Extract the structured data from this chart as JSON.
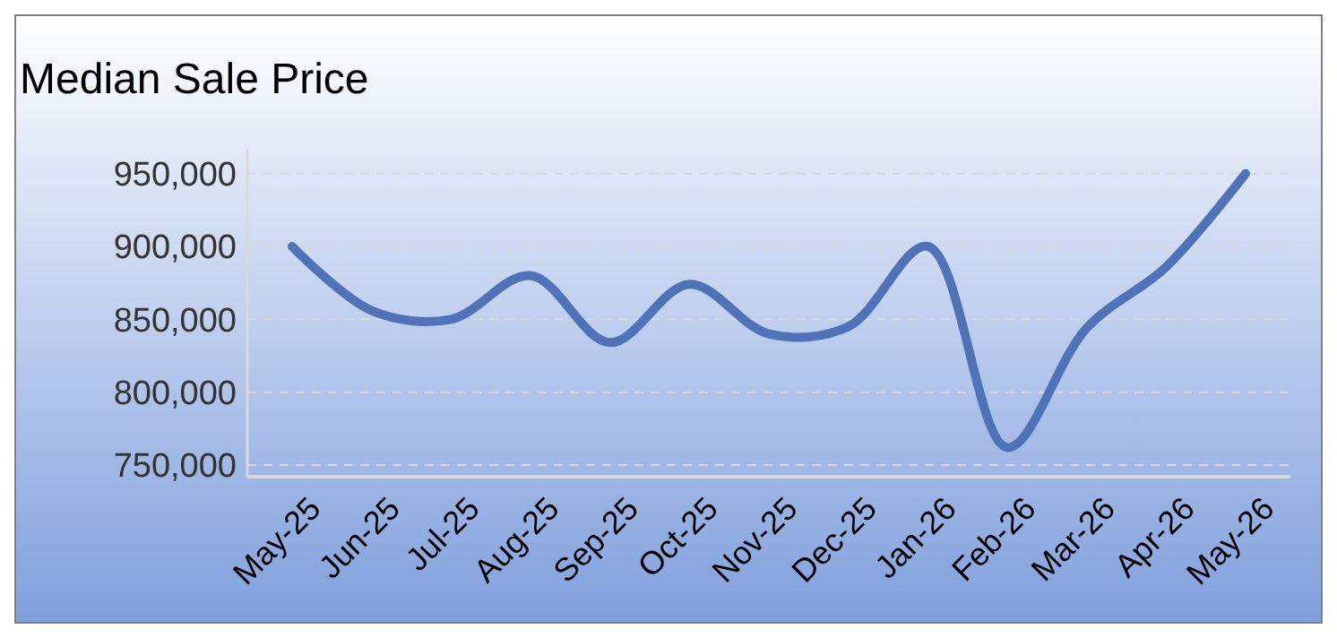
{
  "chart_data": {
    "type": "line",
    "title": "Median Sale Price",
    "categories": [
      "May-25",
      "Jun-25",
      "Jul-25",
      "Aug-25",
      "Sep-25",
      "Oct-25",
      "Nov-25",
      "Dec-25",
      "Jan-26",
      "Feb-26",
      "Mar-26",
      "Apr-26",
      "May-26"
    ],
    "series": [
      {
        "color": "#4f72b8",
        "values": [
          900000,
          856000,
          850000,
          880000,
          834000,
          874000,
          840000,
          845000,
          900000,
          762000,
          844000,
          886000,
          950000
        ]
      }
    ],
    "ylim": [
      742000,
      967000
    ],
    "yticks": [
      {
        "value": 750000,
        "label": "750,000"
      },
      {
        "value": 800000,
        "label": "800,000"
      },
      {
        "value": 850000,
        "label": "850,000"
      },
      {
        "value": 900000,
        "label": "900,000"
      },
      {
        "value": 950000,
        "label": "950,000"
      }
    ],
    "grid": "y",
    "line_style": "solid"
  }
}
